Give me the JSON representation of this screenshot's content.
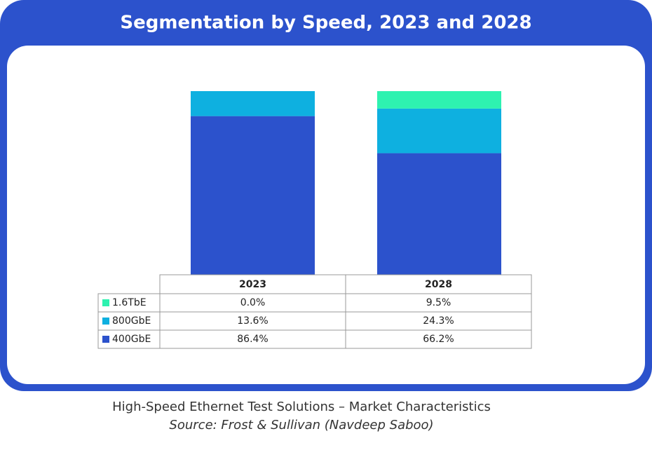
{
  "chart_data": {
    "type": "bar",
    "stacked": true,
    "title": "Segmentation by Speed, 2023 and 2028",
    "categories": [
      "2023",
      "2028"
    ],
    "series": [
      {
        "name": "1.6TbE",
        "color": "#2ef2b0",
        "values": [
          0.0,
          9.5
        ],
        "value_labels": [
          "0.0%",
          "9.5%"
        ]
      },
      {
        "name": "800GbE",
        "color": "#0eb0e0",
        "values": [
          13.6,
          24.3
        ],
        "value_labels": [
          "13.6%",
          "24.3%"
        ]
      },
      {
        "name": "400GbE",
        "color": "#2c52cc",
        "values": [
          86.4,
          66.2
        ],
        "value_labels": [
          "86.4%",
          "66.2%"
        ]
      }
    ],
    "caption": "High-Speed Ethernet Test Solutions – Market Characteristics",
    "source": "Source: Frost & Sullivan (Navdeep Saboo)"
  }
}
